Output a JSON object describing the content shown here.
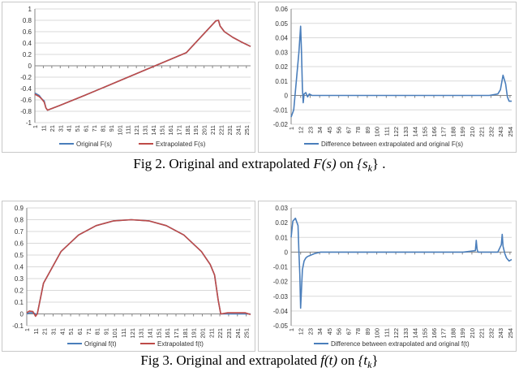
{
  "captions": {
    "fig2": {
      "lead": "Fig 2. Original and extrapolated",
      "func": "F(s)",
      "mid": "on",
      "set": "{s",
      "sub": "k",
      "tail": "} ."
    },
    "fig3": {
      "lead": "Fig 3. Original and extrapolated",
      "func": "f(t)",
      "mid": "on",
      "set": "{t",
      "sub": "k",
      "tail": "}"
    }
  },
  "colors": {
    "original": "#4a7ebb",
    "extrapolated": "#be4b48",
    "difference": "#4a7ebb",
    "gridline": "#d9d9d9",
    "axis": "#868686"
  },
  "chart_data": [
    {
      "id": "fig2-left",
      "type": "line",
      "ylim": [
        -1,
        1
      ],
      "yticks": [
        -1,
        -0.8,
        -0.6,
        -0.4,
        -0.2,
        0,
        0.2,
        0.4,
        0.6,
        0.8,
        1
      ],
      "ytick_labels": [
        "-1",
        "-0.8",
        "-0.6",
        "-0.4",
        "-0.2",
        "0",
        "0.2",
        "0.4",
        "0.6",
        "0.8",
        "1"
      ],
      "xlim": [
        1,
        256
      ],
      "xaxis_at": 0,
      "xticks": [
        1,
        11,
        21,
        31,
        41,
        51,
        61,
        71,
        81,
        91,
        101,
        111,
        121,
        131,
        141,
        151,
        161,
        171,
        181,
        191,
        201,
        211,
        221,
        231,
        241,
        251
      ],
      "xtick_labels": [
        "1",
        "11",
        "21",
        "31",
        "41",
        "51",
        "61",
        "71",
        "81",
        "91",
        "101",
        "111",
        "121",
        "131",
        "141",
        "151",
        "161",
        "171",
        "181",
        "191",
        "201",
        "211",
        "221",
        "231",
        "241",
        "251"
      ],
      "grid": true,
      "legend": "bottom",
      "series": [
        {
          "name": "Original F(s)",
          "color": "#4a7ebb",
          "x": [
            1,
            6,
            9,
            12,
            14,
            16,
            30,
            60,
            100,
            140,
            180,
            215,
            218,
            220,
            225,
            235,
            245,
            256
          ],
          "y": [
            -0.48,
            -0.52,
            -0.58,
            -0.62,
            -0.74,
            -0.78,
            -0.7,
            -0.52,
            -0.27,
            -0.02,
            0.23,
            0.79,
            0.8,
            0.7,
            0.6,
            0.5,
            0.42,
            0.34
          ]
        },
        {
          "name": "Extrapolated F(s)",
          "color": "#be4b48",
          "x": [
            1,
            6,
            9,
            12,
            14,
            16,
            30,
            60,
            100,
            140,
            180,
            215,
            218,
            220,
            225,
            235,
            245,
            256
          ],
          "y": [
            -0.5,
            -0.54,
            -0.58,
            -0.64,
            -0.74,
            -0.78,
            -0.7,
            -0.52,
            -0.27,
            -0.02,
            0.23,
            0.79,
            0.8,
            0.7,
            0.6,
            0.5,
            0.42,
            0.34
          ]
        }
      ]
    },
    {
      "id": "fig2-right",
      "type": "line",
      "ylim": [
        -0.02,
        0.06
      ],
      "yticks": [
        -0.02,
        -0.01,
        0,
        0.01,
        0.02,
        0.03,
        0.04,
        0.05,
        0.06
      ],
      "ytick_labels": [
        "-0.02",
        "-0.01",
        "0",
        "0.01",
        "0.02",
        "0.03",
        "0.04",
        "0.05",
        "0.06"
      ],
      "xlim": [
        1,
        256
      ],
      "xaxis_at": 0,
      "xticks": [
        1,
        12,
        23,
        34,
        45,
        56,
        67,
        78,
        89,
        100,
        111,
        122,
        133,
        144,
        155,
        166,
        177,
        188,
        199,
        210,
        221,
        232,
        243,
        254
      ],
      "xtick_labels": [
        "1",
        "12",
        "23",
        "34",
        "45",
        "56",
        "67",
        "78",
        "89",
        "100",
        "111",
        "122",
        "133",
        "144",
        "155",
        "166",
        "177",
        "188",
        "199",
        "210",
        "221",
        "232",
        "243",
        "254"
      ],
      "grid": true,
      "legend": "bottom",
      "series": [
        {
          "name": "Difference between extrapolated and original F(s)",
          "color": "#4a7ebb",
          "x": [
            1,
            4,
            7,
            10,
            12,
            13,
            14,
            15,
            16,
            18,
            20,
            22,
            25,
            30,
            60,
            120,
            180,
            230,
            240,
            243,
            246,
            249,
            251,
            253,
            256
          ],
          "y": [
            -0.015,
            -0.01,
            0.01,
            0.03,
            0.048,
            0.03,
            0.005,
            -0.005,
            0.001,
            0.002,
            -0.001,
            0.001,
            0.0,
            0.0,
            0.0,
            0.0,
            0.0,
            0.0,
            0.001,
            0.004,
            0.014,
            0.008,
            -0.001,
            -0.004,
            -0.004
          ]
        }
      ]
    },
    {
      "id": "fig3-left",
      "type": "line",
      "ylim": [
        -0.1,
        0.9
      ],
      "yticks": [
        -0.1,
        0,
        0.1,
        0.2,
        0.3,
        0.4,
        0.5,
        0.6,
        0.7,
        0.8,
        0.9
      ],
      "ytick_labels": [
        "-0.1",
        "0",
        "0.1",
        "0.2",
        "0.3",
        "0.4",
        "0.5",
        "0.6",
        "0.7",
        "0.8",
        "0.9"
      ],
      "xlim": [
        1,
        256
      ],
      "xaxis_at": 0,
      "xticks": [
        1,
        11,
        21,
        31,
        41,
        51,
        61,
        71,
        81,
        91,
        101,
        111,
        121,
        131,
        141,
        151,
        161,
        171,
        181,
        191,
        201,
        211,
        221,
        231,
        241,
        251
      ],
      "xtick_labels": [
        "1",
        "11",
        "21",
        "31",
        "41",
        "51",
        "61",
        "71",
        "81",
        "91",
        "101",
        "111",
        "121",
        "131",
        "141",
        "151",
        "161",
        "171",
        "181",
        "191",
        "201",
        "211",
        "221",
        "231",
        "241",
        "251"
      ],
      "grid": true,
      "legend": "bottom",
      "series": [
        {
          "name": "Original f(t)",
          "color": "#4a7ebb",
          "x": [
            1,
            4,
            8,
            11,
            13,
            20,
            40,
            60,
            80,
            100,
            120,
            140,
            160,
            180,
            200,
            210,
            215,
            219,
            222,
            230,
            240,
            250,
            256
          ],
          "y": [
            0.0,
            0.01,
            0.01,
            0.0,
            0.0,
            0.26,
            0.53,
            0.67,
            0.75,
            0.79,
            0.8,
            0.79,
            0.75,
            0.67,
            0.53,
            0.42,
            0.33,
            0.12,
            0.0,
            0.0,
            0.0,
            0.0,
            0.0
          ]
        },
        {
          "name": "Extrapolated f(t)",
          "color": "#be4b48",
          "x": [
            1,
            4,
            8,
            11,
            13,
            20,
            40,
            60,
            80,
            100,
            120,
            140,
            160,
            180,
            200,
            210,
            215,
            219,
            222,
            230,
            240,
            250,
            256
          ],
          "y": [
            0.01,
            0.025,
            0.02,
            -0.02,
            0.0,
            0.26,
            0.53,
            0.67,
            0.75,
            0.79,
            0.8,
            0.79,
            0.75,
            0.67,
            0.53,
            0.42,
            0.33,
            0.12,
            0.0,
            0.01,
            0.01,
            0.01,
            -0.005
          ]
        }
      ]
    },
    {
      "id": "fig3-right",
      "type": "line",
      "ylim": [
        -0.05,
        0.03
      ],
      "yticks": [
        -0.05,
        -0.04,
        -0.03,
        -0.02,
        -0.01,
        0,
        0.01,
        0.02,
        0.03
      ],
      "ytick_labels": [
        "-0.05",
        "-0.04",
        "-0.03",
        "-0.02",
        "-0.01",
        "0",
        "0.01",
        "0.02",
        "0.03"
      ],
      "xlim": [
        1,
        256
      ],
      "xaxis_at": 0,
      "xticks": [
        1,
        12,
        23,
        34,
        45,
        56,
        67,
        78,
        89,
        100,
        111,
        122,
        133,
        144,
        155,
        166,
        177,
        188,
        199,
        210,
        221,
        232,
        243,
        254
      ],
      "xtick_labels": [
        "1",
        "12",
        "23",
        "34",
        "45",
        "56",
        "67",
        "78",
        "89",
        "100",
        "111",
        "122",
        "133",
        "144",
        "155",
        "166",
        "177",
        "188",
        "199",
        "210",
        "221",
        "232",
        "243",
        "254"
      ],
      "grid": true,
      "legend": "bottom",
      "series": [
        {
          "name": "Difference between extrapolated and original f(t)",
          "color": "#4a7ebb",
          "x": [
            1,
            3,
            6,
            9,
            10,
            11,
            12,
            14,
            16,
            18,
            20,
            24,
            28,
            35,
            50,
            100,
            150,
            200,
            214,
            215,
            216,
            217,
            230,
            240,
            244,
            245,
            246,
            248,
            250,
            253,
            256
          ],
          "y": [
            0.01,
            0.021,
            0.023,
            0.018,
            0.0,
            -0.015,
            -0.038,
            -0.012,
            -0.006,
            -0.004,
            -0.003,
            -0.002,
            -0.001,
            0.0,
            0.0,
            0.0,
            0.0,
            0.0,
            0.001,
            0.008,
            0.002,
            0.0,
            0.0,
            0.0,
            0.005,
            0.012,
            0.004,
            -0.001,
            -0.004,
            -0.006,
            -0.005
          ]
        }
      ]
    }
  ]
}
